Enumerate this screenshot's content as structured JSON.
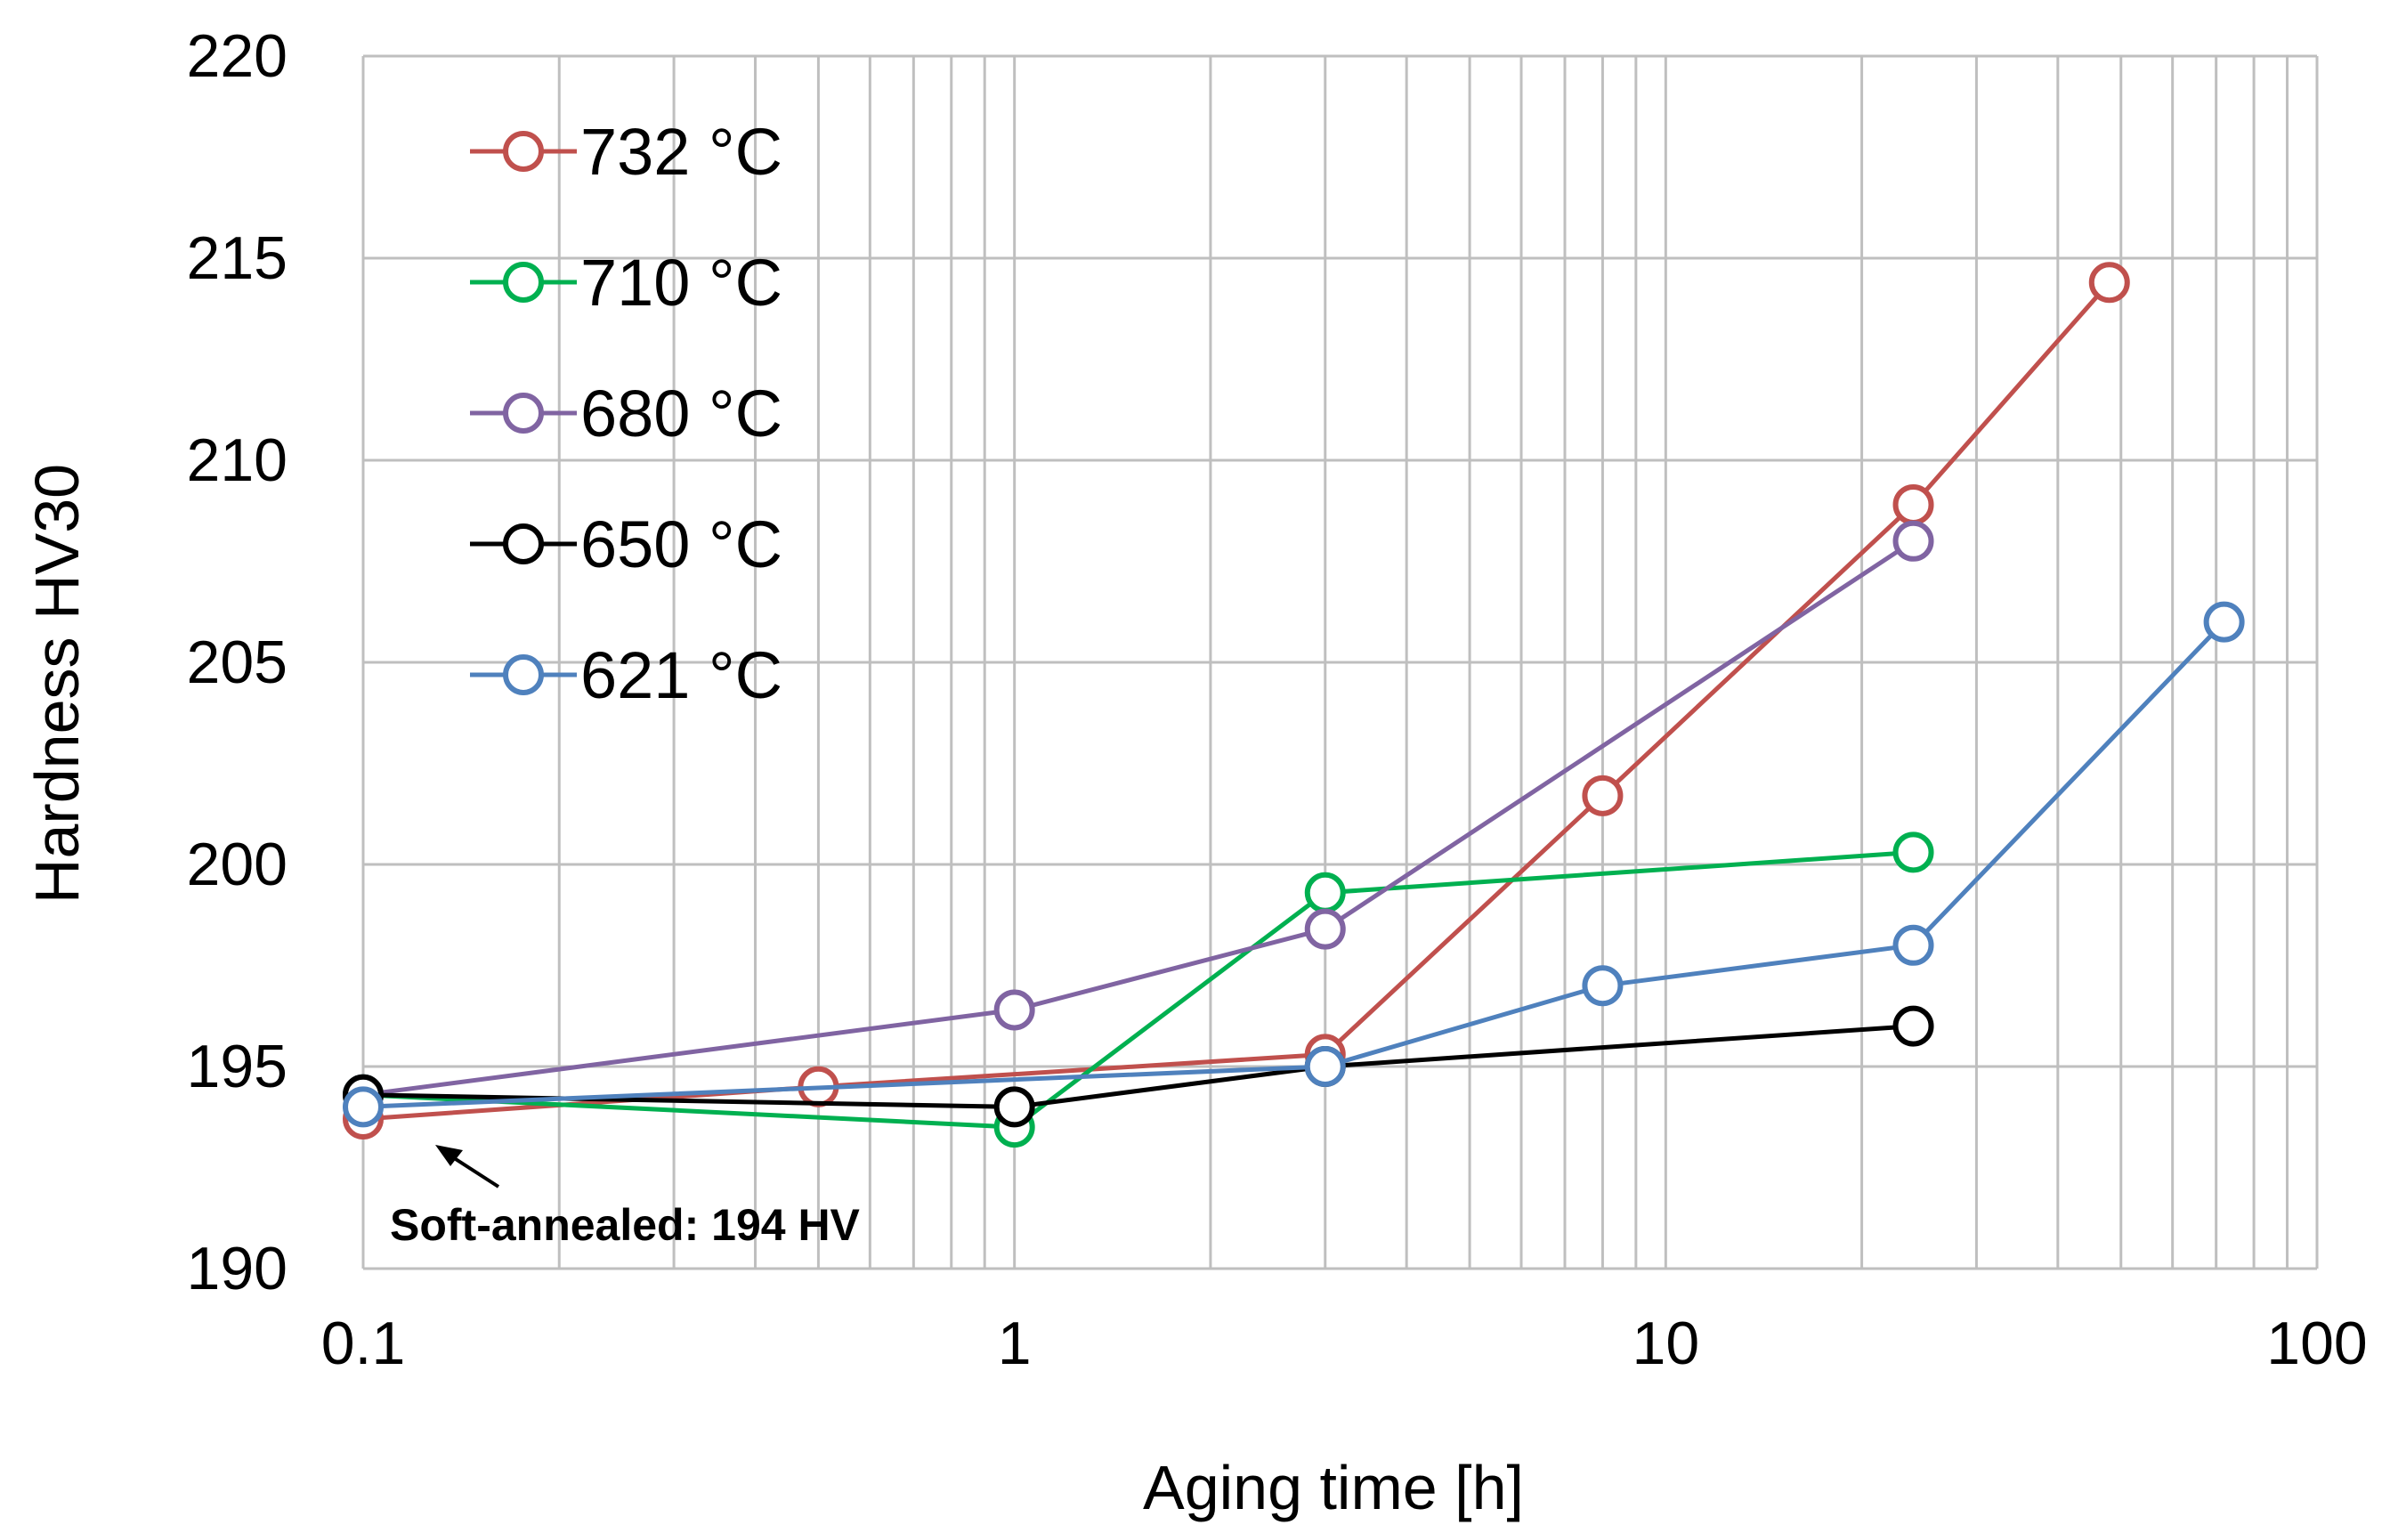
{
  "chart_data": {
    "type": "line",
    "xscale": "log",
    "xlabel": "Aging time [h]",
    "ylabel": "Hardness HV30",
    "xlim": [
      0.1,
      100
    ],
    "ylim": [
      190,
      220
    ],
    "xticks": [
      {
        "value": 0.1,
        "label": "0.1"
      },
      {
        "value": 1,
        "label": "1"
      },
      {
        "value": 10,
        "label": "10"
      },
      {
        "value": 100,
        "label": "100"
      }
    ],
    "yticks": [
      {
        "value": 190,
        "label": "190"
      },
      {
        "value": 195,
        "label": "195"
      },
      {
        "value": 200,
        "label": "200"
      },
      {
        "value": 205,
        "label": "205"
      },
      {
        "value": 210,
        "label": "210"
      },
      {
        "value": 215,
        "label": "215"
      },
      {
        "value": 220,
        "label": "220"
      }
    ],
    "grid": true,
    "legend_position": "top-left",
    "series": [
      {
        "name": "732 °C",
        "color": "#C0504D",
        "x": [
          0.1,
          0.5,
          3,
          8,
          24,
          48
        ],
        "y": [
          193.7,
          194.5,
          195.3,
          201.7,
          208.9,
          214.4
        ]
      },
      {
        "name": "710 °C",
        "color": "#00B050",
        "x": [
          0.1,
          1,
          3,
          24
        ],
        "y": [
          194.3,
          193.5,
          199.3,
          200.3
        ]
      },
      {
        "name": "680 °C",
        "color": "#8064A2",
        "x": [
          0.1,
          1,
          3,
          24
        ],
        "y": [
          194.3,
          196.4,
          198.4,
          208.0
        ]
      },
      {
        "name": "650 °C",
        "color": "#000000",
        "x": [
          0.1,
          1,
          3,
          24
        ],
        "y": [
          194.3,
          194.0,
          195.0,
          196.0
        ]
      },
      {
        "name": "621 °C",
        "color": "#4F81BD",
        "x": [
          0.1,
          3,
          8,
          24,
          72
        ],
        "y": [
          194.0,
          195.0,
          197.0,
          198.0,
          206.0
        ]
      }
    ],
    "annotation": {
      "text": "Soft-annealed: 194 HV",
      "x": 0.1,
      "y": 194
    }
  }
}
